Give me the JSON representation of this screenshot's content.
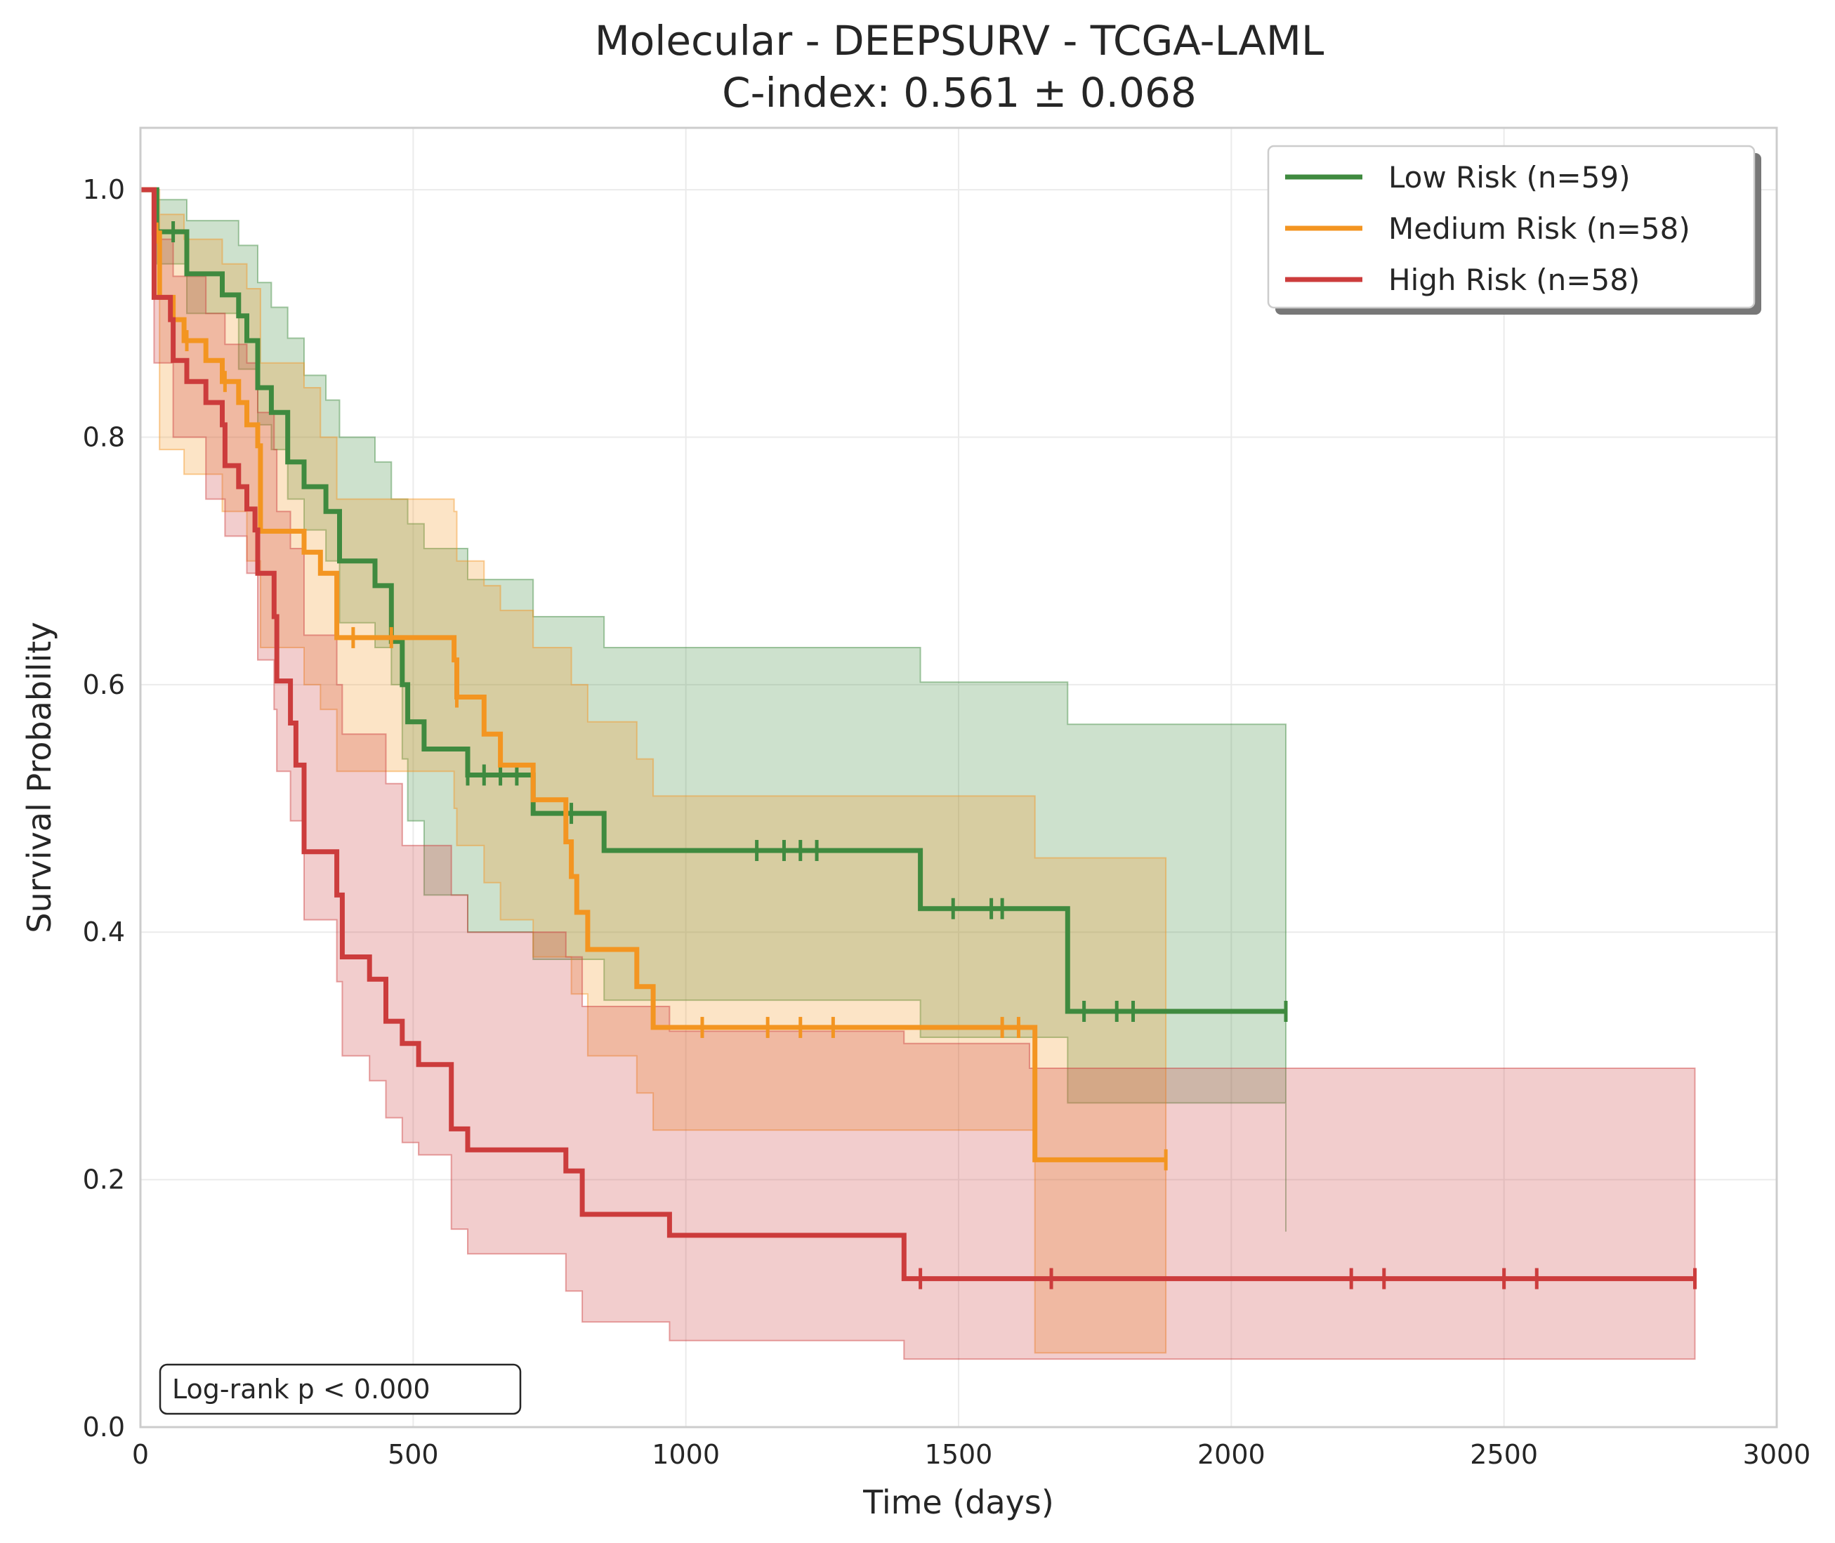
{
  "chart_data": {
    "type": "line",
    "subtype": "kaplan-meier",
    "title": "Molecular - DEEPSURV - TCGA-LAML",
    "subtitle": "C-index: 0.561 ± 0.068",
    "xlabel": "Time (days)",
    "ylabel": "Survival Probability",
    "xlim": [
      0,
      3000
    ],
    "ylim": [
      0,
      1.05
    ],
    "xticks": [
      0,
      500,
      1000,
      1500,
      2000,
      2500,
      3000
    ],
    "yticks": [
      0.0,
      0.2,
      0.4,
      0.6,
      0.8,
      1.0
    ],
    "xtick_labels": [
      "0",
      "500",
      "1000",
      "1500",
      "2000",
      "2500",
      "3000"
    ],
    "ytick_labels": [
      "0.0",
      "0.2",
      "0.4",
      "0.6",
      "0.8",
      "1.0"
    ],
    "grid": true,
    "legend_position": "top-right",
    "annotation": "Log-rank p < 0.000",
    "series": [
      {
        "name": "Low Risk (n=59)",
        "color": "#3f8a3f",
        "steps": [
          [
            0,
            1.0
          ],
          [
            30,
            0.966
          ],
          [
            85,
            0.932
          ],
          [
            150,
            0.915
          ],
          [
            180,
            0.898
          ],
          [
            195,
            0.878
          ],
          [
            215,
            0.84
          ],
          [
            240,
            0.82
          ],
          [
            270,
            0.78
          ],
          [
            300,
            0.76
          ],
          [
            340,
            0.74
          ],
          [
            365,
            0.7
          ],
          [
            430,
            0.68
          ],
          [
            460,
            0.635
          ],
          [
            480,
            0.6
          ],
          [
            490,
            0.57
          ],
          [
            520,
            0.548
          ],
          [
            600,
            0.527
          ],
          [
            720,
            0.496
          ],
          [
            850,
            0.466
          ],
          [
            1430,
            0.419
          ],
          [
            1700,
            0.336
          ],
          [
            2100,
            0.336
          ]
        ],
        "ci_upper": [
          [
            0,
            1.0
          ],
          [
            30,
            0.992
          ],
          [
            85,
            0.975
          ],
          [
            180,
            0.955
          ],
          [
            215,
            0.925
          ],
          [
            240,
            0.905
          ],
          [
            270,
            0.88
          ],
          [
            300,
            0.85
          ],
          [
            340,
            0.83
          ],
          [
            365,
            0.8
          ],
          [
            430,
            0.78
          ],
          [
            460,
            0.75
          ],
          [
            490,
            0.73
          ],
          [
            520,
            0.71
          ],
          [
            600,
            0.685
          ],
          [
            720,
            0.655
          ],
          [
            850,
            0.63
          ],
          [
            1430,
            0.602
          ],
          [
            1700,
            0.568
          ],
          [
            2100,
            0.525
          ]
        ],
        "ci_lower": [
          [
            0,
            1.0
          ],
          [
            30,
            0.94
          ],
          [
            85,
            0.9
          ],
          [
            180,
            0.855
          ],
          [
            215,
            0.81
          ],
          [
            240,
            0.79
          ],
          [
            270,
            0.75
          ],
          [
            300,
            0.725
          ],
          [
            340,
            0.7
          ],
          [
            365,
            0.65
          ],
          [
            430,
            0.63
          ],
          [
            460,
            0.6
          ],
          [
            480,
            0.54
          ],
          [
            490,
            0.49
          ],
          [
            520,
            0.43
          ],
          [
            600,
            0.4
          ],
          [
            720,
            0.378
          ],
          [
            850,
            0.345
          ],
          [
            1430,
            0.315
          ],
          [
            1700,
            0.262
          ],
          [
            2100,
            0.158
          ]
        ],
        "censor_times": [
          60,
          600,
          630,
          660,
          690,
          790,
          1130,
          1180,
          1210,
          1240,
          1490,
          1560,
          1580,
          1730,
          1790,
          1820,
          2100
        ]
      },
      {
        "name": "Medium Risk (n=58)",
        "color": "#f39521",
        "steps": [
          [
            0,
            1.0
          ],
          [
            25,
            0.965
          ],
          [
            35,
            0.913
          ],
          [
            60,
            0.895
          ],
          [
            80,
            0.878
          ],
          [
            120,
            0.862
          ],
          [
            150,
            0.845
          ],
          [
            180,
            0.828
          ],
          [
            195,
            0.81
          ],
          [
            215,
            0.793
          ],
          [
            220,
            0.724
          ],
          [
            300,
            0.707
          ],
          [
            330,
            0.69
          ],
          [
            360,
            0.638
          ],
          [
            575,
            0.62
          ],
          [
            580,
            0.59
          ],
          [
            630,
            0.56
          ],
          [
            660,
            0.535
          ],
          [
            720,
            0.507
          ],
          [
            780,
            0.473
          ],
          [
            790,
            0.445
          ],
          [
            800,
            0.416
          ],
          [
            820,
            0.386
          ],
          [
            910,
            0.356
          ],
          [
            940,
            0.323
          ],
          [
            1640,
            0.216
          ],
          [
            1880,
            0.216
          ]
        ],
        "ci_upper": [
          [
            0,
            1.0
          ],
          [
            35,
            0.98
          ],
          [
            80,
            0.96
          ],
          [
            150,
            0.94
          ],
          [
            195,
            0.92
          ],
          [
            220,
            0.86
          ],
          [
            300,
            0.84
          ],
          [
            330,
            0.8
          ],
          [
            360,
            0.75
          ],
          [
            575,
            0.74
          ],
          [
            580,
            0.7
          ],
          [
            630,
            0.68
          ],
          [
            660,
            0.66
          ],
          [
            720,
            0.63
          ],
          [
            790,
            0.6
          ],
          [
            820,
            0.57
          ],
          [
            910,
            0.54
          ],
          [
            940,
            0.51
          ],
          [
            1640,
            0.46
          ],
          [
            1880,
            0.43
          ]
        ],
        "ci_lower": [
          [
            0,
            1.0
          ],
          [
            35,
            0.79
          ],
          [
            80,
            0.77
          ],
          [
            150,
            0.74
          ],
          [
            195,
            0.7
          ],
          [
            220,
            0.63
          ],
          [
            300,
            0.6
          ],
          [
            330,
            0.58
          ],
          [
            360,
            0.53
          ],
          [
            575,
            0.5
          ],
          [
            580,
            0.47
          ],
          [
            630,
            0.44
          ],
          [
            660,
            0.41
          ],
          [
            720,
            0.38
          ],
          [
            790,
            0.35
          ],
          [
            820,
            0.3
          ],
          [
            910,
            0.27
          ],
          [
            940,
            0.24
          ],
          [
            1640,
            0.06
          ],
          [
            1880,
            0.06
          ]
        ],
        "censor_times": [
          30,
          85,
          155,
          390,
          460,
          580,
          1030,
          1150,
          1210,
          1270,
          1580,
          1610,
          1880
        ]
      },
      {
        "name": "High Risk (n=58)",
        "color": "#cc3c3c",
        "steps": [
          [
            0,
            1.0
          ],
          [
            25,
            0.913
          ],
          [
            55,
            0.895
          ],
          [
            60,
            0.862
          ],
          [
            85,
            0.845
          ],
          [
            120,
            0.828
          ],
          [
            150,
            0.81
          ],
          [
            155,
            0.777
          ],
          [
            180,
            0.76
          ],
          [
            195,
            0.742
          ],
          [
            210,
            0.725
          ],
          [
            215,
            0.69
          ],
          [
            245,
            0.655
          ],
          [
            250,
            0.603
          ],
          [
            275,
            0.569
          ],
          [
            285,
            0.535
          ],
          [
            300,
            0.465
          ],
          [
            360,
            0.43
          ],
          [
            370,
            0.38
          ],
          [
            420,
            0.362
          ],
          [
            450,
            0.328
          ],
          [
            480,
            0.31
          ],
          [
            510,
            0.293
          ],
          [
            570,
            0.241
          ],
          [
            600,
            0.224
          ],
          [
            780,
            0.207
          ],
          [
            810,
            0.172
          ],
          [
            970,
            0.155
          ],
          [
            1400,
            0.12
          ],
          [
            2850,
            0.12
          ]
        ],
        "ci_upper": [
          [
            0,
            1.0
          ],
          [
            25,
            0.96
          ],
          [
            60,
            0.93
          ],
          [
            120,
            0.9
          ],
          [
            155,
            0.875
          ],
          [
            195,
            0.86
          ],
          [
            215,
            0.82
          ],
          [
            245,
            0.79
          ],
          [
            250,
            0.74
          ],
          [
            275,
            0.71
          ],
          [
            300,
            0.64
          ],
          [
            360,
            0.6
          ],
          [
            370,
            0.56
          ],
          [
            450,
            0.52
          ],
          [
            480,
            0.47
          ],
          [
            570,
            0.43
          ],
          [
            600,
            0.4
          ],
          [
            780,
            0.38
          ],
          [
            810,
            0.34
          ],
          [
            970,
            0.32
          ],
          [
            1400,
            0.31
          ],
          [
            1630,
            0.29
          ],
          [
            2850,
            0.22
          ]
        ],
        "ci_lower": [
          [
            0,
            1.0
          ],
          [
            25,
            0.86
          ],
          [
            60,
            0.8
          ],
          [
            120,
            0.75
          ],
          [
            155,
            0.72
          ],
          [
            195,
            0.69
          ],
          [
            215,
            0.62
          ],
          [
            245,
            0.58
          ],
          [
            250,
            0.53
          ],
          [
            275,
            0.49
          ],
          [
            300,
            0.41
          ],
          [
            360,
            0.36
          ],
          [
            370,
            0.3
          ],
          [
            420,
            0.28
          ],
          [
            450,
            0.25
          ],
          [
            480,
            0.23
          ],
          [
            510,
            0.22
          ],
          [
            570,
            0.16
          ],
          [
            600,
            0.14
          ],
          [
            780,
            0.11
          ],
          [
            810,
            0.085
          ],
          [
            970,
            0.07
          ],
          [
            1400,
            0.055
          ],
          [
            2850,
            0.055
          ]
        ],
        "censor_times": [
          1430,
          1670,
          2220,
          2280,
          2500,
          2560,
          2850
        ]
      }
    ]
  }
}
